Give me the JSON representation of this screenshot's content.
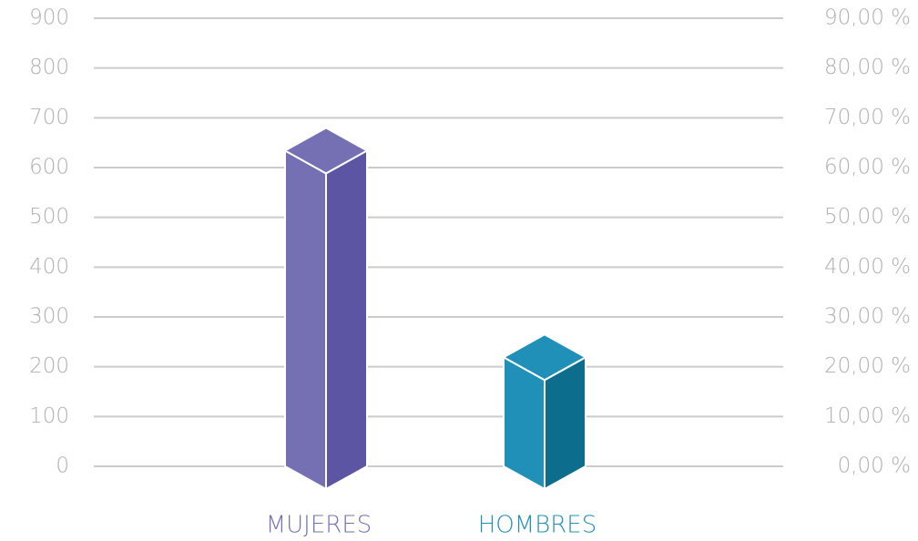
{
  "chart_data": {
    "type": "bar3d",
    "categories": [
      "MUJERES",
      "HOMBRES"
    ],
    "values": [
      634,
      219
    ],
    "colors": [
      "#7570b3",
      "#2190b8"
    ],
    "side_colors": [
      "#5b55a3",
      "#0c6e8c"
    ],
    "ylim": [
      0,
      900
    ],
    "yticks": [
      0,
      100,
      200,
      300,
      400,
      500,
      600,
      700,
      800,
      900
    ],
    "y2lim": [
      0,
      90
    ],
    "y2ticks": [
      {
        "value": 0,
        "label": "0,00 %"
      },
      {
        "value": 10,
        "label": "10,00 %"
      },
      {
        "value": 20,
        "label": "20,00 %"
      },
      {
        "value": 30,
        "label": "30,00 %"
      },
      {
        "value": 40,
        "label": "40,00 %"
      },
      {
        "value": 50,
        "label": "50,00 %"
      },
      {
        "value": 60,
        "label": "60,00 %"
      },
      {
        "value": 70,
        "label": "70,00 %"
      },
      {
        "value": 80,
        "label": "80,00 %"
      },
      {
        "value": 90,
        "label": "90,00 %"
      }
    ],
    "grid": true
  }
}
